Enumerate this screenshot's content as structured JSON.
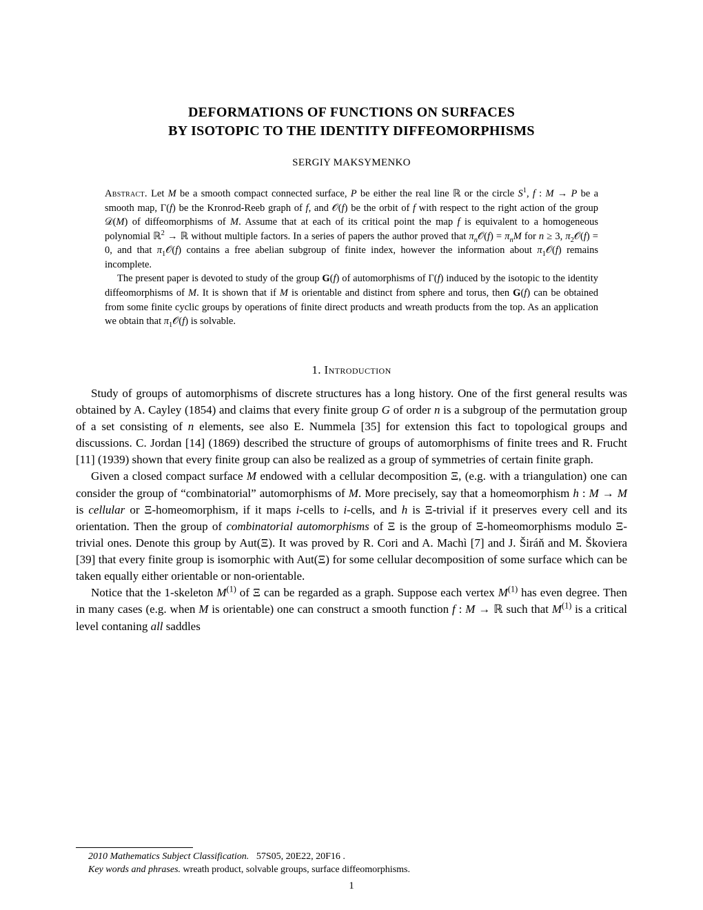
{
  "title_line1": "DEFORMATIONS OF FUNCTIONS ON SURFACES",
  "title_line2": "BY ISOTOPIC TO THE IDENTITY DIFFEOMORPHISMS",
  "author": "SERGIY MAKSYMENKO",
  "abstract": {
    "label": "Abstract.",
    "p1": " Let M be a smooth compact connected surface, P be either the real line ℝ or the circle S¹, f : M → P be a smooth map, Γ(f) be the Kronrod-Reeb graph of f, and 𝒪(f) be the orbit of f with respect to the right action of the group 𝒟(M) of diffeomorphisms of M. Assume that at each of its critical point the map f is equivalent to a homogeneous polynomial ℝ² → ℝ without multiple factors. In a series of papers the author proved that πn𝒪(f) = πnM for n ≥ 3, π₂𝒪(f) = 0, and that π₁𝒪(f) contains a free abelian subgroup of finite index, however the information about π₁𝒪(f) remains incomplete.",
    "p2": "The present paper is devoted to study of the group G(f) of automorphisms of Γ(f) induced by the isotopic to the identity diffeomorphisms of M. It is shown that if M is orientable and distinct from sphere and torus, then G(f) can be obtained from some finite cyclic groups by operations of finite direct products and wreath products from the top. As an application we obtain that π₁𝒪(f) is solvable."
  },
  "section1": {
    "heading": "1. Introduction",
    "p1": "Study of groups of automorphisms of discrete structures has a long history. One of the first general results was obtained by A. Cayley (1854) and claims that every finite group G of order n is a subgroup of the permutation group of a set consisting of n elements, see also E. Nummela [35] for extension this fact to topological groups and discussions. C. Jordan [14] (1869) described the structure of groups of automorphisms of finite trees and R. Frucht [11] (1939) shown that every finite group can also be realized as a group of symmetries of certain finite graph.",
    "p2": "Given a closed compact surface M endowed with a cellular decomposition Ξ, (e.g. with a triangulation) one can consider the group of “combinatorial” automorphisms of M. More precisely, say that a homeomorphism h : M → M is cellular or Ξ-homeomorphism, if it maps i-cells to i-cells, and h is Ξ-trivial if it preserves every cell and its orientation. Then the group of combinatorial automorphisms of Ξ is the group of Ξ-homeomorphisms modulo Ξ-trivial ones. Denote this group by Aut(Ξ). It was proved by R. Cori and A. Machì [7] and J. Širáň and M. Škoviera [39] that every finite group is isomorphic with Aut(Ξ) for some cellular decomposition of some surface which can be taken equally either orientable or non-orientable.",
    "p3": "Notice that the 1-skeleton M⁽¹⁾ of Ξ can be regarded as a graph. Suppose each vertex M⁽¹⁾ has even degree. Then in many cases (e.g. when M is orientable) one can construct a smooth function f : M → ℝ such that M⁽¹⁾ is a critical level contaning all saddles"
  },
  "footnotes": {
    "msc_label": "2010 Mathematics Subject Classification.",
    "msc_text": "57S05, 20E22, 20F16 .",
    "kw_label": "Key words and phrases.",
    "kw_text": "wreath product, solvable groups, surface diffeomorphisms."
  },
  "pagenum": "1"
}
